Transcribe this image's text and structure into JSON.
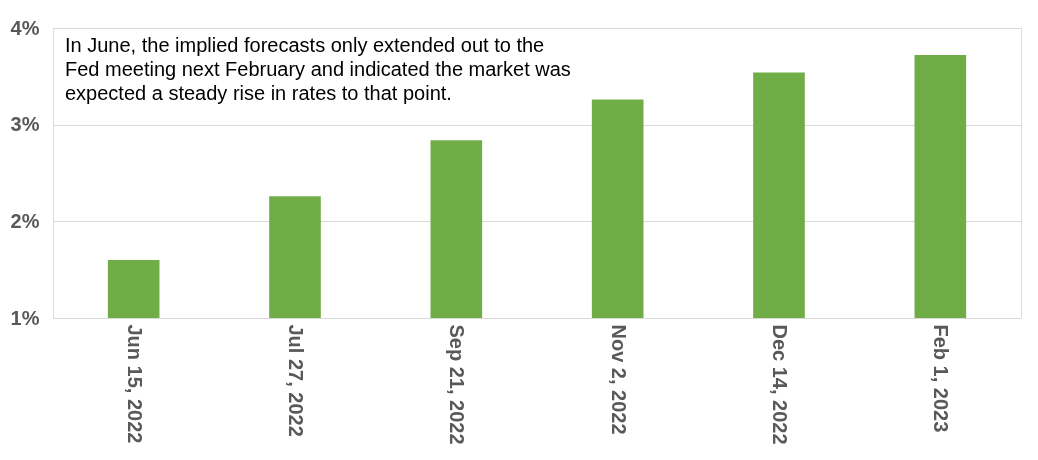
{
  "chart_data": {
    "type": "bar",
    "categories": [
      "Jun 15, 2022",
      "Jul 27, 2022",
      "Sep 21, 2022",
      "Nov 2, 2022",
      "Dec 14, 2022",
      "Feb 1, 2023"
    ],
    "values": [
      1.6,
      2.26,
      2.84,
      3.26,
      3.54,
      3.72
    ],
    "color": "#70ad47",
    "ylim": [
      1,
      4
    ],
    "yticks": [
      {
        "value": 1,
        "label": "1%"
      },
      {
        "value": 2,
        "label": "2%"
      },
      {
        "value": 3,
        "label": "3%"
      },
      {
        "value": 4,
        "label": "4%"
      }
    ],
    "grid": "y",
    "annotations": [
      "In June, the implied forecasts only extended out to the Fed meeting next February and indicated the market was expected a steady rise in rates to that point."
    ]
  }
}
